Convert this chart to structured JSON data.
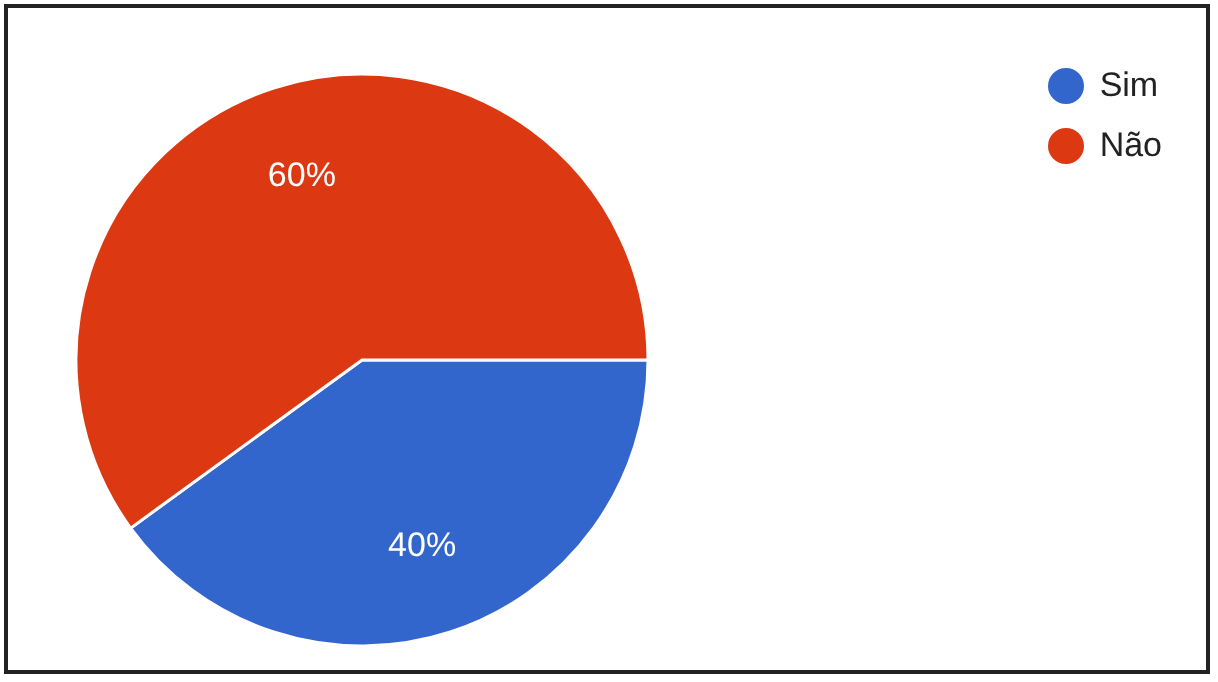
{
  "chart_data": {
    "type": "pie",
    "categories": [
      "Sim",
      "Não"
    ],
    "values": [
      40,
      60
    ],
    "colors": [
      "#3366cc",
      "#dc3912"
    ],
    "value_labels": [
      "40%",
      "60%"
    ],
    "legend": "top right"
  }
}
